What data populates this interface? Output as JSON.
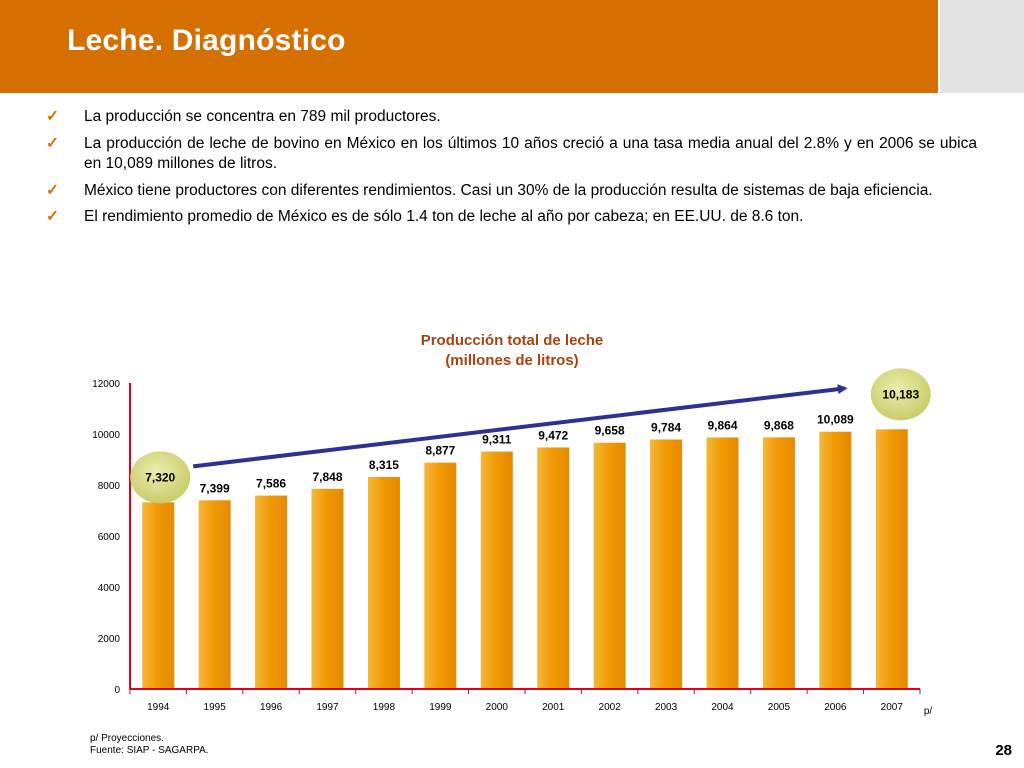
{
  "title": "Leche. Diagnóstico",
  "bullets": [
    "La producción se concentra en 789 mil productores.",
    "La producción de leche de bovino en México en los últimos 10 años creció a una tasa media anual del 2.8% y en 2006 se ubica en 10,089 millones de litros.",
    "México tiene productores con diferentes rendimientos. Casi un 30% de la producción resulta de sistemas de baja eficiencia.",
    "El rendimiento promedio de México es de sólo 1.4 ton de leche al año por cabeza; en EE.UU. de 8.6 ton."
  ],
  "chart_data": {
    "type": "bar",
    "title": [
      "Producción total de leche",
      "(millones de litros)"
    ],
    "categories": [
      "1994",
      "1995",
      "1996",
      "1997",
      "1998",
      "1999",
      "2000",
      "2001",
      "2002",
      "2003",
      "2004",
      "2005",
      "2006",
      "2007"
    ],
    "values": [
      7320,
      7399,
      7586,
      7848,
      8315,
      8877,
      9311,
      9472,
      9658,
      9784,
      9864,
      9868,
      10089,
      10183
    ],
    "data_labels": [
      "7,320",
      "7,399",
      "7,586",
      "7,848",
      "8,315",
      "8,877",
      "9,311",
      "9,472",
      "9,658",
      "9,784",
      "9,864",
      "9,868",
      "10,089",
      "10,183"
    ],
    "yticks": [
      "0",
      "2000",
      "4000",
      "6000",
      "8000",
      "10000",
      "12000"
    ],
    "ylim": [
      0,
      12000
    ],
    "x_axis_suffix": "p/",
    "highlighted_labels": [
      0,
      13
    ],
    "trend_arrow": {
      "from_category": "1994",
      "to_category": "2007"
    },
    "grid": false,
    "colors": {
      "bar": "#f2a20c",
      "axis": "#e0001b",
      "arrow": "#2e3192",
      "highlight_circle": "#d3d67a"
    }
  },
  "footnote": [
    "p/  Proyecciones.",
    "Fuente:  SIAP - SAGARPA."
  ],
  "page_number": "28",
  "colors": {
    "header": "#d46f00",
    "header_side": "#e3e3e3",
    "check": "#d46f00",
    "chart_title": "#a8420f"
  }
}
